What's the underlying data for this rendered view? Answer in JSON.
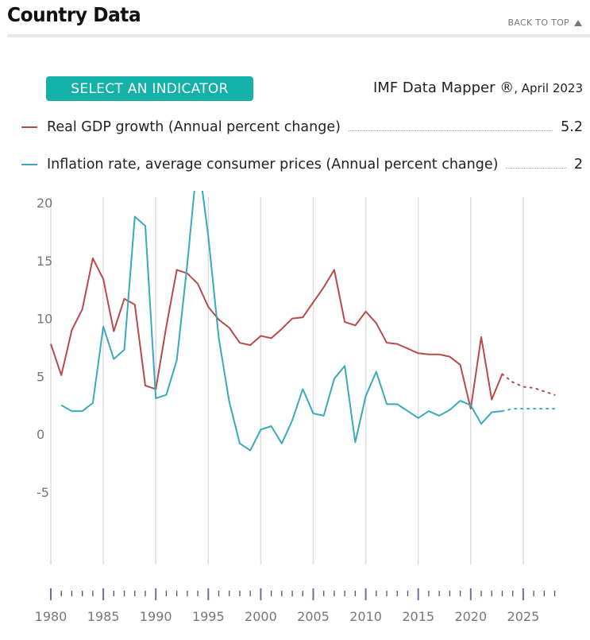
{
  "header": {
    "title": "Country Data",
    "back_to_top": "BACK TO TOP"
  },
  "indicator_button": "SELECT AN INDICATOR",
  "source": {
    "name": "IMF Data Mapper ®",
    "date": ", April 2023"
  },
  "legend": [
    {
      "label": "Real GDP growth (Annual percent change)",
      "value": "5.2"
    },
    {
      "label": "Inflation rate, average consumer prices (Annual percent change)",
      "value": "2"
    }
  ],
  "colors": {
    "gdp": "#b94a4a",
    "inflation": "#3aa9bd",
    "accent": "#14b1a8",
    "grid": "#dddddd"
  },
  "chart_data": {
    "type": "line",
    "title": "",
    "xlabel": "",
    "ylabel": "",
    "xlim": [
      1980,
      2028
    ],
    "ylim": [
      -5,
      25
    ],
    "x_ticks": [
      "1980",
      "1985",
      "1990",
      "1995",
      "2000",
      "2005",
      "2010",
      "2015",
      "2020",
      "2025"
    ],
    "y_ticks": [
      "25",
      "20",
      "15",
      "10",
      "5",
      "0",
      "-5"
    ],
    "grid": true,
    "series": [
      {
        "name": "Real GDP growth (Annual percent change)",
        "actual": {
          "x": [
            1980,
            1981,
            1982,
            1983,
            1984,
            1985,
            1986,
            1987,
            1988,
            1989,
            1990,
            1991,
            1992,
            1993,
            1994,
            1995,
            1996,
            1997,
            1998,
            1999,
            2000,
            2001,
            2002,
            2003,
            2004,
            2005,
            2006,
            2007,
            2008,
            2009,
            2010,
            2011,
            2012,
            2013,
            2014,
            2015,
            2016,
            2017,
            2018,
            2019,
            2020,
            2021,
            2022,
            2023
          ],
          "y": [
            7.8,
            5.1,
            9.0,
            10.8,
            15.2,
            13.4,
            8.9,
            11.7,
            11.2,
            4.2,
            3.9,
            9.3,
            14.2,
            13.9,
            13.0,
            11.0,
            9.9,
            9.2,
            7.9,
            7.7,
            8.5,
            8.3,
            9.1,
            10.0,
            10.1,
            11.4,
            12.7,
            14.2,
            9.7,
            9.4,
            10.6,
            9.6,
            7.9,
            7.8,
            7.4,
            7.0,
            6.9,
            6.9,
            6.7,
            6.0,
            2.2,
            8.4,
            3.0,
            5.2
          ]
        },
        "projection": {
          "x": [
            2023,
            2024,
            2025,
            2026,
            2027,
            2028
          ],
          "y": [
            5.2,
            4.5,
            4.1,
            4.0,
            3.7,
            3.4
          ]
        }
      },
      {
        "name": "Inflation rate, average consumer prices (Annual percent change)",
        "actual": {
          "x": [
            1981,
            1982,
            1983,
            1984,
            1985,
            1986,
            1987,
            1988,
            1989,
            1990,
            1991,
            1992,
            1993,
            1994,
            1995,
            1996,
            1997,
            1998,
            1999,
            2000,
            2001,
            2002,
            2003,
            2004,
            2005,
            2006,
            2007,
            2008,
            2009,
            2010,
            2011,
            2012,
            2013,
            2014,
            2015,
            2016,
            2017,
            2018,
            2019,
            2020,
            2021,
            2022,
            2023
          ],
          "y": [
            2.5,
            2.0,
            2.0,
            2.7,
            9.3,
            6.5,
            7.3,
            18.8,
            18.0,
            3.1,
            3.4,
            6.4,
            14.7,
            24.1,
            17.1,
            8.3,
            2.8,
            -0.8,
            -1.4,
            0.4,
            0.7,
            -0.8,
            1.2,
            3.9,
            1.8,
            1.6,
            4.8,
            5.9,
            -0.7,
            3.3,
            5.4,
            2.6,
            2.6,
            2.0,
            1.4,
            2.0,
            1.6,
            2.1,
            2.9,
            2.5,
            0.9,
            1.9,
            2.0
          ]
        },
        "projection": {
          "x": [
            2023,
            2024,
            2025,
            2026,
            2027,
            2028
          ],
          "y": [
            2.0,
            2.2,
            2.2,
            2.2,
            2.2,
            2.2
          ]
        }
      }
    ]
  }
}
